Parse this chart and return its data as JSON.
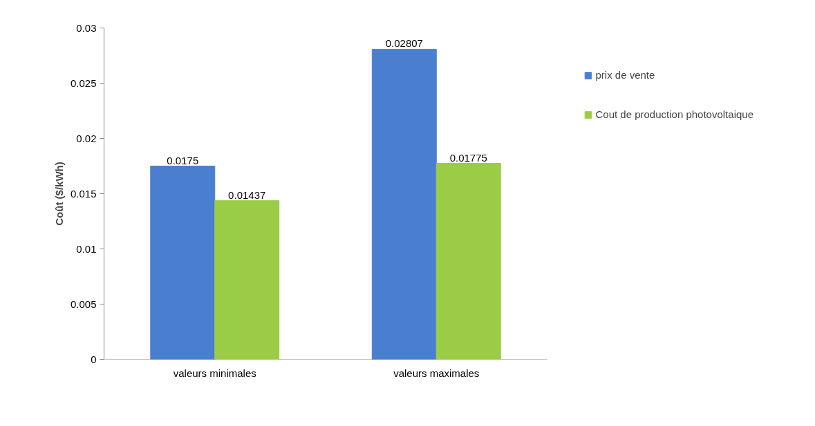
{
  "chart_data": {
    "type": "bar",
    "ylabel": "Coût ($/kWh)",
    "categories": [
      "valeurs minimales",
      "valeurs maximales"
    ],
    "series": [
      {
        "name": "prix de vente",
        "color": "#4a7fd0",
        "values": [
          0.0175,
          0.02807
        ]
      },
      {
        "name": "Cout de production photovoltaique",
        "color": "#9acd45",
        "values": [
          0.01437,
          0.01775
        ]
      }
    ],
    "ylim": [
      0,
      0.03
    ],
    "yticks": [
      0,
      0.005,
      0.01,
      0.015,
      0.02,
      0.025,
      0.03
    ],
    "data_labels": true,
    "grid": false,
    "legend": "right"
  }
}
